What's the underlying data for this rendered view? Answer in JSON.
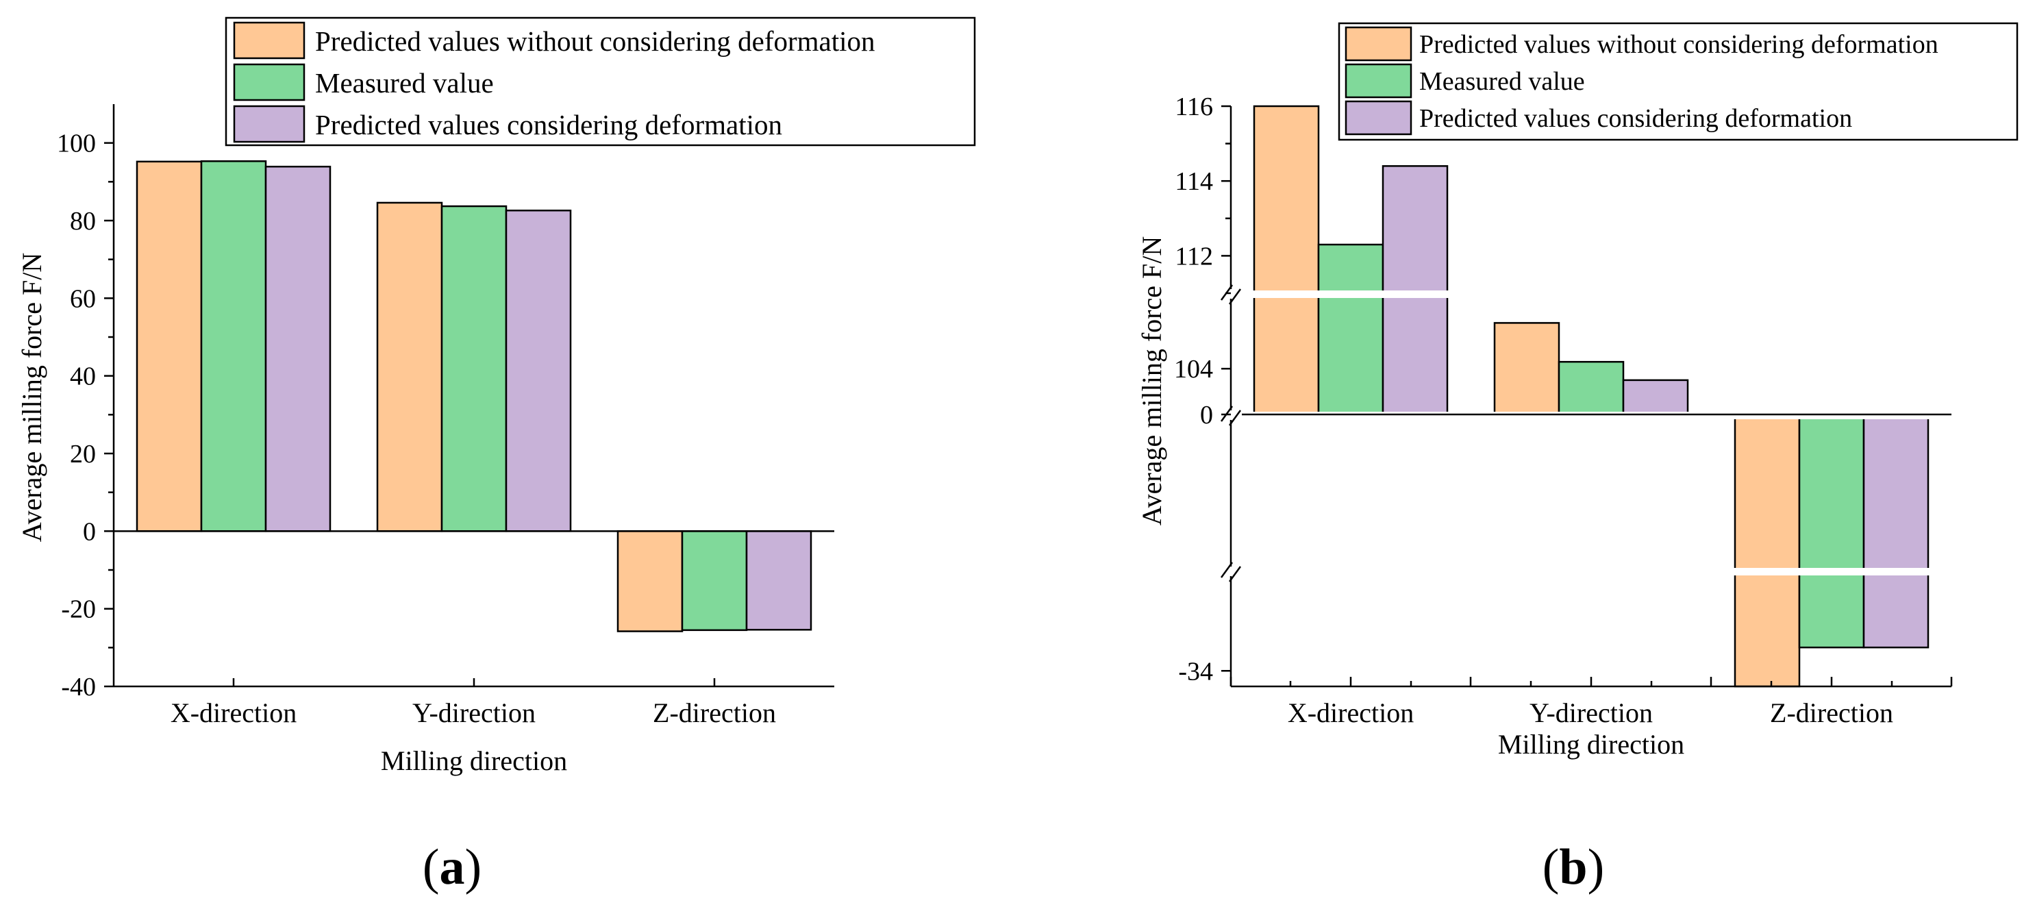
{
  "colors": {
    "series_0": "#FFC895",
    "series_1": "#80D99A",
    "series_2": "#C8B2D8",
    "axis": "#000000",
    "break_line": "#ffffff"
  },
  "chart_data": [
    {
      "type": "bar",
      "panel": "(a)",
      "panel_paren_open": "(",
      "panel_letter": "a",
      "panel_paren_close": ")",
      "xlabel": "Milling direction",
      "ylabel": "Average milling force F/N",
      "categories": [
        "X-direction",
        "Y-direction",
        "Z-direction"
      ],
      "series": [
        {
          "name": "Predicted values without considering deformation",
          "values": [
            95.2,
            84.6,
            -25.8
          ]
        },
        {
          "name": "Measured value",
          "values": [
            95.3,
            83.7,
            -25.5
          ]
        },
        {
          "name": "Predicted values considering deformation",
          "values": [
            93.9,
            82.6,
            -25.4
          ]
        }
      ],
      "ylim": [
        -40,
        110
      ],
      "yticks": [
        -40,
        -20,
        0,
        20,
        40,
        60,
        80,
        100
      ],
      "ytick_labels": [
        "-40",
        "-20",
        "0",
        "20",
        "40",
        "60",
        "80",
        "100"
      ],
      "legend_position": "top"
    },
    {
      "type": "bar",
      "panel": "(b)",
      "panel_paren_open": "(",
      "panel_letter": "b",
      "panel_paren_close": ")",
      "xlabel": "Milling direction",
      "ylabel": "Average milling force F/N",
      "broken_axis": true,
      "categories": [
        "X-direction",
        "Y-direction",
        "Z-direction"
      ],
      "series": [
        {
          "name": "Predicted values without considering deformation",
          "values": [
            116.0,
            106.0,
            -37.0
          ]
        },
        {
          "name": "Measured value",
          "values": [
            112.3,
            104.3,
            -31.0
          ]
        },
        {
          "name": "Predicted values considering deformation",
          "values": [
            114.4,
            103.5,
            -31.0
          ]
        }
      ],
      "segments": [
        {
          "range": [
            111.0,
            116.0
          ],
          "ticks": [
            112,
            114,
            116
          ],
          "tick_labels": [
            "112",
            "114",
            "116"
          ]
        },
        {
          "range": [
            102.0,
            107.0
          ],
          "ticks": [
            104
          ],
          "tick_labels": [
            "104"
          ]
        },
        {
          "range": [
            -11.0,
            0.0
          ],
          "ticks": [
            0
          ],
          "tick_labels": [
            "0"
          ]
        },
        {
          "range": [
            -36.0,
            -20.0
          ],
          "ticks": [
            -34
          ],
          "tick_labels": [
            "-34"
          ]
        }
      ],
      "legend_position": "top"
    }
  ]
}
